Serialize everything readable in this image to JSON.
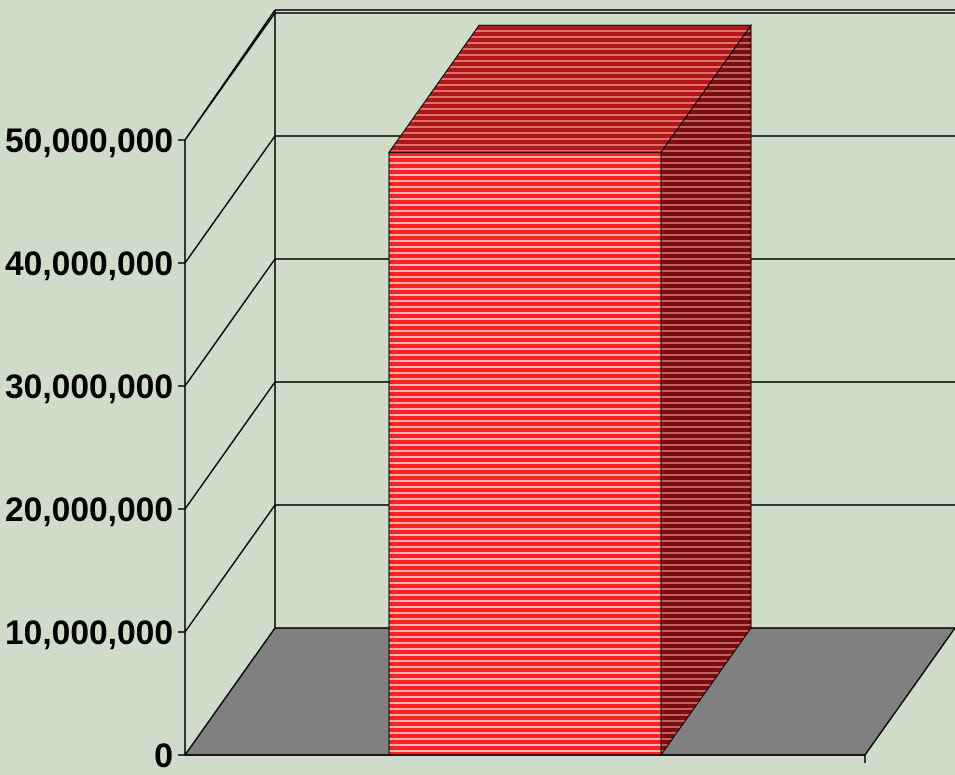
{
  "chart_data": {
    "type": "bar",
    "title": "",
    "xlabel": "",
    "ylabel": "",
    "categories": [
      ""
    ],
    "values": [
      49000000
    ],
    "ylim": [
      0,
      60000000
    ],
    "yticks": [
      0,
      10000000,
      20000000,
      30000000,
      40000000,
      50000000
    ],
    "ytick_labels": [
      "0",
      "10,000,000",
      "20,000,000",
      "30,000,000",
      "40,000,000",
      "50,000,000"
    ],
    "grid": true,
    "legend": "none",
    "colors": {
      "background": "#d0dcca",
      "floor": "#808080",
      "bar_front": "#ff2020",
      "bar_stripe": "#ffb0b0",
      "bar_top": "#b01818",
      "bar_side": "#7a0e0e",
      "axis": "#000000"
    }
  }
}
